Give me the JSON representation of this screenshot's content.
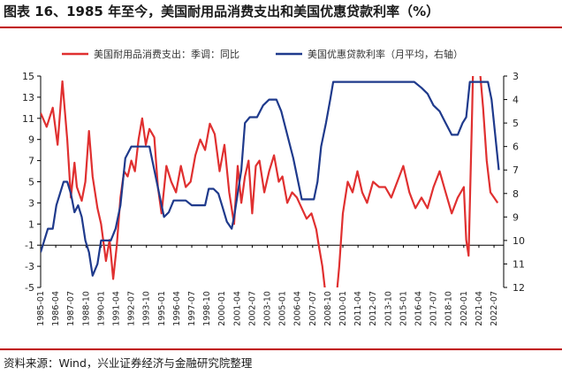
{
  "header": {
    "title": "图表 16、1985 年至今，美国耐用品消费支出和美国优惠贷款利率（%）"
  },
  "footer": {
    "source": "资料来源：Wind，兴业证券经济与金融研究院整理"
  },
  "colors": {
    "red": "#e03030",
    "blue": "#1f3a8c",
    "rule": "#c00000"
  },
  "chart_data": {
    "type": "line",
    "legend_position": "top",
    "grid": false,
    "x_tick_labels": [
      "1985-01",
      "1986-04",
      "1987-07",
      "1988-10",
      "1990-01",
      "1991-04",
      "1992-07",
      "1993-10",
      "1995-01",
      "1996-04",
      "1997-07",
      "1998-10",
      "2000-01",
      "2001-04",
      "2002-07",
      "2003-10",
      "2005-01",
      "2006-04",
      "2007-07",
      "2008-10",
      "2010-01",
      "2011-04",
      "2012-07",
      "2013-10",
      "2015-01",
      "2016-04",
      "2017-07",
      "2018-10",
      "2020-01",
      "2021-04",
      "2022-07"
    ],
    "y_left": {
      "ticks": [
        "15",
        "13",
        "11",
        "9",
        "7",
        "5",
        "3",
        "1",
        "-1",
        "-3",
        "-5"
      ],
      "min": -5,
      "max": 15
    },
    "y_right": {
      "ticks": [
        "3",
        "4",
        "5",
        "6",
        "7",
        "8",
        "9",
        "10",
        "11",
        "12"
      ],
      "min": 3,
      "max": 12,
      "inverted": true
    },
    "series": [
      {
        "name": "美国耐用品消费支出：季调：同比",
        "axis": "left",
        "x": [
          1985.0,
          1985.5,
          1986.0,
          1986.4,
          1986.8,
          1987.2,
          1987.5,
          1987.8,
          1988.0,
          1988.4,
          1988.7,
          1989.0,
          1989.3,
          1989.7,
          1990.0,
          1990.4,
          1990.7,
          1991.0,
          1991.3,
          1991.6,
          1991.9,
          1992.2,
          1992.5,
          1992.8,
          1993.1,
          1993.4,
          1993.7,
          1994.0,
          1994.4,
          1994.7,
          1995.0,
          1995.4,
          1995.8,
          1996.2,
          1996.6,
          1997.0,
          1997.4,
          1997.8,
          1998.2,
          1998.6,
          1999.0,
          1999.4,
          1999.8,
          2000.2,
          2000.6,
          2001.0,
          2001.3,
          2001.6,
          2001.9,
          2002.2,
          2002.5,
          2002.8,
          2003.1,
          2003.5,
          2003.9,
          2004.3,
          2004.7,
          2005.0,
          2005.4,
          2005.8,
          2006.2,
          2006.6,
          2007.0,
          2007.4,
          2007.8,
          2008.0,
          2008.3,
          2008.6,
          2008.9,
          2009.3,
          2009.7,
          2010.0,
          2010.4,
          2010.8,
          2011.2,
          2011.6,
          2012.0,
          2012.5,
          2013.0,
          2013.5,
          2014.0,
          2014.5,
          2015.0,
          2015.5,
          2016.0,
          2016.5,
          2017.0,
          2017.5,
          2018.0,
          2018.5,
          2019.0,
          2019.5,
          2020.0,
          2020.2,
          2020.4,
          2020.7,
          2021.0,
          2021.3,
          2021.6,
          2021.9,
          2022.2,
          2022.5,
          2022.8
        ],
        "y": [
          11.5,
          10.2,
          12.0,
          8.5,
          14.5,
          9.0,
          3.5,
          6.8,
          4.5,
          3.2,
          5.0,
          9.8,
          5.5,
          2.5,
          1.0,
          -2.5,
          -0.5,
          -4.2,
          -1.0,
          3.5,
          6.0,
          5.5,
          7.0,
          6.0,
          9.0,
          11.0,
          8.5,
          10.0,
          9.2,
          4.5,
          2.0,
          6.5,
          5.0,
          4.0,
          6.5,
          4.5,
          5.0,
          7.5,
          9.0,
          8.0,
          10.5,
          9.5,
          6.0,
          8.5,
          4.0,
          1.0,
          6.5,
          3.0,
          5.5,
          7.0,
          2.0,
          6.5,
          7.0,
          4.0,
          6.0,
          7.5,
          5.0,
          5.5,
          3.0,
          4.0,
          3.5,
          2.5,
          1.5,
          2.0,
          0.5,
          -1.0,
          -3.0,
          -6.0,
          -11.0,
          -8.0,
          -3.0,
          2.0,
          5.0,
          4.0,
          6.0,
          4.0,
          3.0,
          5.0,
          4.5,
          4.5,
          3.5,
          5.0,
          6.5,
          4.0,
          2.5,
          3.5,
          2.5,
          4.5,
          6.0,
          4.0,
          2.0,
          3.5,
          4.5,
          -0.5,
          -2.0,
          12.0,
          28.0,
          16.0,
          12.0,
          7.0,
          4.0,
          3.5,
          3.0
        ]
      },
      {
        "name": "美国优惠贷款利率（月平均，右轴）",
        "axis": "right",
        "x": [
          1985.0,
          1985.3,
          1985.6,
          1986.0,
          1986.3,
          1986.6,
          1986.9,
          1987.2,
          1987.5,
          1987.8,
          1988.1,
          1988.4,
          1988.7,
          1989.0,
          1989.3,
          1989.7,
          1990.0,
          1990.4,
          1990.8,
          1991.2,
          1991.6,
          1992.0,
          1992.5,
          1993.0,
          1993.5,
          1994.0,
          1994.4,
          1994.8,
          1995.2,
          1995.6,
          1996.0,
          1996.5,
          1997.0,
          1997.5,
          1998.0,
          1998.6,
          1998.9,
          1999.3,
          1999.7,
          2000.0,
          2000.4,
          2000.8,
          2001.0,
          2001.3,
          2001.6,
          2001.9,
          2002.3,
          2002.9,
          2003.4,
          2003.9,
          2004.5,
          2004.9,
          2005.4,
          2005.9,
          2006.3,
          2006.6,
          2007.0,
          2007.6,
          2007.9,
          2008.2,
          2008.6,
          2008.95,
          2009.2,
          2010.0,
          2012.0,
          2014.0,
          2015.9,
          2016.5,
          2017.0,
          2017.5,
          2018.0,
          2018.5,
          2019.0,
          2019.5,
          2019.9,
          2020.2,
          2020.5,
          2021.5,
          2022.0,
          2022.3,
          2022.6,
          2022.9
        ],
        "y": [
          10.5,
          10.0,
          9.5,
          9.5,
          8.5,
          8.0,
          7.5,
          7.5,
          8.0,
          8.8,
          8.5,
          9.0,
          10.0,
          10.5,
          11.5,
          11.0,
          10.0,
          10.0,
          10.0,
          9.5,
          8.5,
          6.5,
          6.0,
          6.0,
          6.0,
          6.0,
          7.0,
          8.0,
          9.0,
          8.8,
          8.3,
          8.3,
          8.3,
          8.5,
          8.5,
          8.5,
          7.8,
          7.8,
          8.0,
          8.5,
          9.2,
          9.5,
          9.0,
          8.0,
          7.0,
          5.0,
          4.75,
          4.75,
          4.25,
          4.0,
          4.0,
          4.5,
          5.5,
          6.5,
          7.5,
          8.25,
          8.25,
          8.25,
          7.5,
          6.0,
          5.0,
          4.0,
          3.25,
          3.25,
          3.25,
          3.25,
          3.25,
          3.5,
          3.75,
          4.25,
          4.5,
          5.0,
          5.5,
          5.5,
          5.0,
          4.75,
          3.25,
          3.25,
          3.25,
          4.0,
          5.5,
          7.0
        ]
      }
    ]
  }
}
